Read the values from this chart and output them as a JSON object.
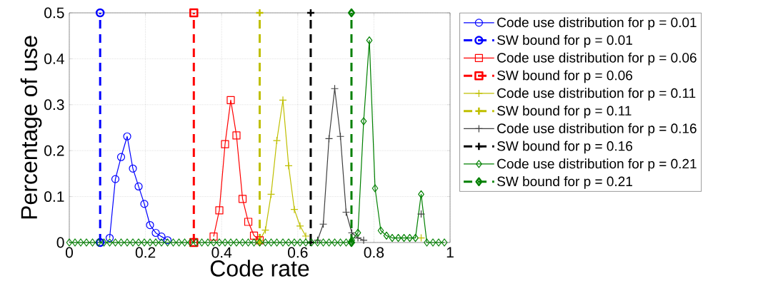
{
  "chart_data": {
    "type": "line",
    "xlabel": "Code rate",
    "ylabel": "Percentage of use",
    "x": [
      0,
      0.015,
      0.03,
      0.045,
      0.061,
      0.076,
      0.091,
      0.106,
      0.121,
      0.136,
      0.152,
      0.167,
      0.182,
      0.197,
      0.212,
      0.227,
      0.242,
      0.258,
      0.273,
      0.288,
      0.303,
      0.318,
      0.333,
      0.348,
      0.364,
      0.379,
      0.394,
      0.409,
      0.424,
      0.439,
      0.455,
      0.47,
      0.485,
      0.5,
      0.515,
      0.53,
      0.545,
      0.561,
      0.576,
      0.591,
      0.606,
      0.621,
      0.636,
      0.652,
      0.667,
      0.682,
      0.697,
      0.712,
      0.727,
      0.742,
      0.758,
      0.773,
      0.788,
      0.803,
      0.818,
      0.833,
      0.848,
      0.864,
      0.879,
      0.894,
      0.909,
      0.924,
      0.939,
      0.955,
      0.97,
      0.985
    ],
    "xlim": [
      0,
      1
    ],
    "ylim": [
      0,
      0.5
    ],
    "xticks": [
      0,
      0.2,
      0.4,
      0.6,
      0.8,
      1
    ],
    "yticks": [
      0,
      0.1,
      0.2,
      0.3,
      0.4,
      0.5
    ],
    "grid": true,
    "legend": "right",
    "series": [
      {
        "name": "Code use distribution for p = 0.01",
        "color": "#0000ff",
        "marker": "circle",
        "line_style": "solid",
        "values": [
          null,
          null,
          null,
          null,
          null,
          null,
          null,
          0.01,
          0.138,
          0.186,
          0.231,
          0.161,
          0.122,
          0.084,
          0.038,
          0.021,
          0.013,
          0.005,
          null,
          null,
          null,
          null,
          null,
          null,
          null,
          null,
          null,
          null,
          null,
          null,
          null,
          null,
          null,
          null,
          null,
          null,
          null,
          null,
          null,
          null,
          null,
          null,
          null,
          null,
          null,
          null,
          null,
          null,
          null,
          null,
          null,
          null,
          null,
          null,
          null,
          null,
          null,
          null,
          null,
          null,
          null,
          null,
          null,
          null,
          null,
          null
        ]
      },
      {
        "name": "SW bound for p = 0.01",
        "color": "#0000ff",
        "marker": "circle",
        "line_style": "dashed",
        "x": [
          0.081,
          0.081
        ],
        "values": [
          0,
          0.5
        ]
      },
      {
        "name": "Code use distribution for p = 0.06",
        "color": "#ff0000",
        "marker": "square",
        "line_style": "solid",
        "values": [
          null,
          null,
          null,
          null,
          null,
          null,
          null,
          null,
          null,
          null,
          null,
          null,
          null,
          null,
          null,
          null,
          null,
          null,
          null,
          null,
          null,
          null,
          null,
          null,
          null,
          0.013,
          0.07,
          0.214,
          0.31,
          0.233,
          0.095,
          0.045,
          0.015,
          0.005,
          null,
          null,
          null,
          null,
          null,
          null,
          null,
          null,
          null,
          null,
          null,
          null,
          null,
          null,
          null,
          null,
          null,
          null,
          null,
          null,
          null,
          null,
          null,
          null,
          null,
          null,
          null,
          null,
          null,
          null,
          null,
          null
        ]
      },
      {
        "name": "SW bound for p = 0.06",
        "color": "#ff0000",
        "marker": "square",
        "line_style": "dashed",
        "x": [
          0.327,
          0.327
        ],
        "values": [
          0,
          0.5
        ]
      },
      {
        "name": "Code use distribution for p = 0.11",
        "color": "#bfbf00",
        "marker": "cross",
        "line_style": "solid",
        "values": [
          null,
          null,
          null,
          null,
          null,
          null,
          null,
          null,
          null,
          null,
          null,
          null,
          null,
          null,
          null,
          null,
          null,
          null,
          null,
          null,
          null,
          null,
          null,
          null,
          null,
          null,
          null,
          null,
          null,
          null,
          null,
          null,
          null,
          0.005,
          0.027,
          0.105,
          0.222,
          0.31,
          0.167,
          0.072,
          0.036,
          0.014,
          null,
          null,
          null,
          null,
          null,
          null,
          null,
          null,
          null,
          null,
          null,
          null,
          null,
          null,
          null,
          null,
          null,
          null,
          null,
          0.01,
          null,
          null,
          null,
          null
        ]
      },
      {
        "name": "SW bound for p = 0.11",
        "color": "#bfbf00",
        "marker": "cross",
        "line_style": "dashed",
        "x": [
          0.5,
          0.5
        ],
        "values": [
          0,
          0.5
        ]
      },
      {
        "name": "Code use distribution for p = 0.16",
        "color": "#404040",
        "marker": "cross",
        "line_style": "solid",
        "values": [
          null,
          null,
          null,
          null,
          null,
          null,
          null,
          null,
          null,
          null,
          null,
          null,
          null,
          null,
          null,
          null,
          null,
          null,
          null,
          null,
          null,
          null,
          null,
          null,
          null,
          null,
          null,
          null,
          null,
          null,
          null,
          null,
          null,
          null,
          null,
          null,
          null,
          null,
          null,
          null,
          null,
          null,
          null,
          0.005,
          0.04,
          0.226,
          0.335,
          0.231,
          0.066,
          0.021,
          0.01,
          0.005,
          null,
          null,
          null,
          null,
          null,
          null,
          null,
          null,
          null,
          0.062,
          null,
          null,
          null,
          null
        ]
      },
      {
        "name": "SW bound for p = 0.16",
        "color": "#000000",
        "marker": "cross",
        "line_style": "dashed",
        "x": [
          0.634,
          0.634
        ],
        "values": [
          0,
          0.5
        ]
      },
      {
        "name": "Code use distribution for p = 0.21",
        "color": "#008000",
        "marker": "diamond",
        "line_style": "solid",
        "values": [
          0,
          0,
          0,
          0,
          0,
          0,
          0,
          0,
          0,
          0,
          0,
          0,
          0,
          0,
          0,
          0,
          0,
          0,
          0,
          0,
          0,
          0,
          0,
          0,
          0,
          0,
          0,
          0,
          0,
          0,
          0,
          0,
          0,
          0,
          0,
          0,
          0,
          0,
          0,
          0,
          0,
          0,
          0,
          0,
          0,
          0,
          0,
          0,
          0,
          0.005,
          0.021,
          0.264,
          0.44,
          0.118,
          0.026,
          0.015,
          0.01,
          0.01,
          0.01,
          0.01,
          0.01,
          0.105,
          0,
          0,
          0,
          0
        ]
      },
      {
        "name": "SW bound for p = 0.21",
        "color": "#008000",
        "marker": "diamond",
        "line_style": "dashed",
        "x": [
          0.741,
          0.741
        ],
        "values": [
          0,
          0.5
        ]
      }
    ]
  }
}
